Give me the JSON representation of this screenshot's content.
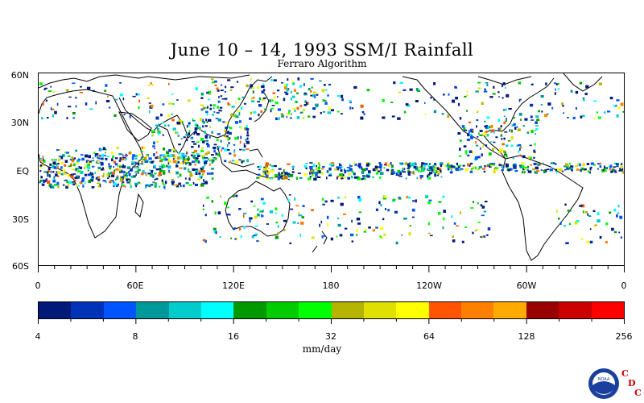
{
  "title": "June 10 – 14, 1993 SSM/I Rainfall",
  "subtitle": "Ferraro Algorithm",
  "lat_labels": [
    "60N",
    "30N",
    "EQ",
    "30S",
    "60S"
  ],
  "lon_labels": [
    "0",
    "60E",
    "120E",
    "180",
    "120W",
    "60W",
    "0"
  ],
  "colorbar": {
    "colors": [
      "#001a7a",
      "#0033b8",
      "#0055ff",
      "#009999",
      "#00cccc",
      "#00ffff",
      "#009900",
      "#00cc00",
      "#00ff00",
      "#b3b300",
      "#e0e000",
      "#ffff00",
      "#ff5500",
      "#ff8000",
      "#ffaa00",
      "#990000",
      "#cc0000",
      "#ff0000"
    ],
    "tick_labels": [
      "4",
      "8",
      "16",
      "32",
      "64",
      "128",
      "256"
    ]
  },
  "units": "mm/day",
  "logo": {
    "text": "NOAA",
    "letters": [
      "C",
      "D",
      "C"
    ],
    "letter_color": "#cc0000"
  }
}
